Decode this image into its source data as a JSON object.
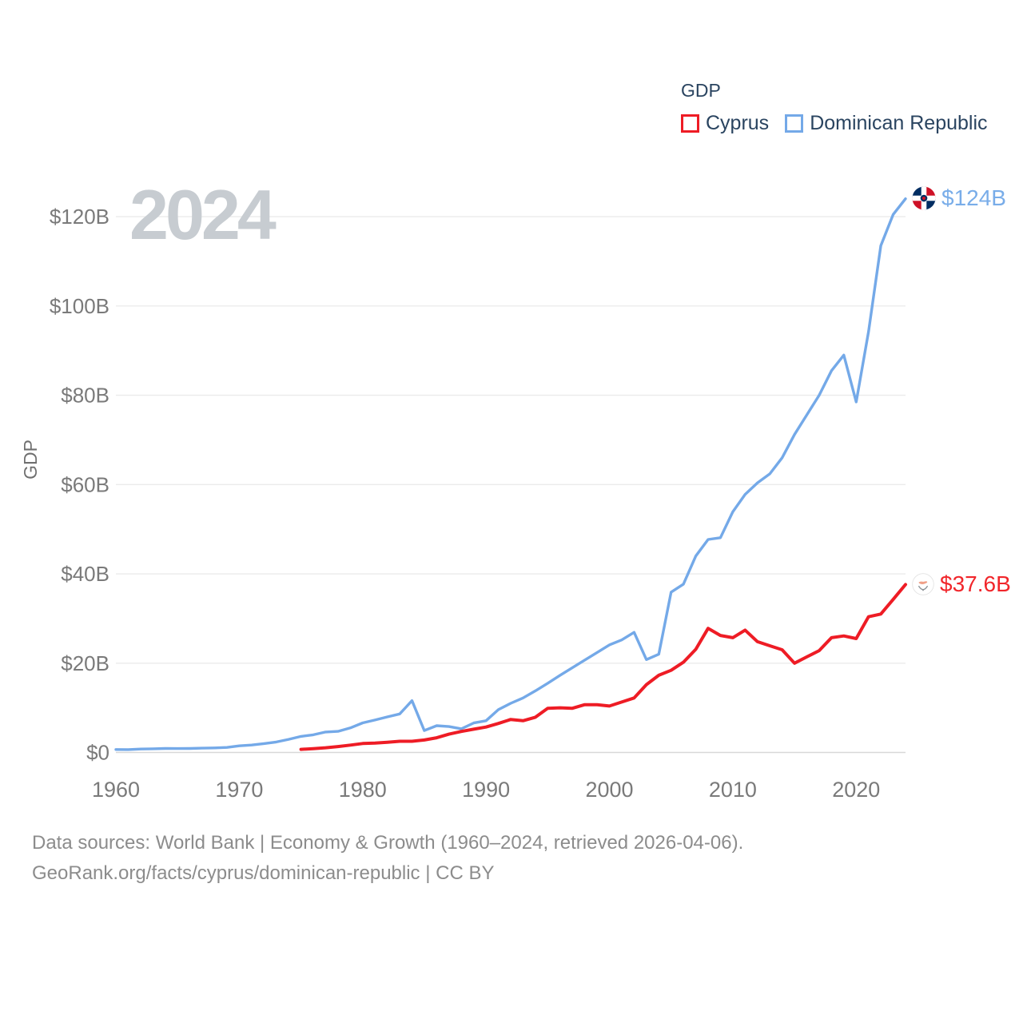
{
  "watermark": "2024",
  "legend": {
    "title": "GDP",
    "items": [
      {
        "id": "cyprus",
        "label": "Cyprus",
        "color": "#ee1c25"
      },
      {
        "id": "dominican-republic",
        "label": "Dominican Republic",
        "color": "#74a9e8"
      }
    ]
  },
  "end_labels": {
    "dominican_republic": "$124B",
    "cyprus": "$37.6B"
  },
  "colors": {
    "cyprus_line": "#ee1c25",
    "dominican_line": "#74a9e8",
    "grid": "#ebebeb",
    "zero_line": "#d8d8d8",
    "tick_text": "#7a7a7a",
    "axis_title": "#6f6f6f"
  },
  "chart_data": {
    "type": "line",
    "title": "GDP",
    "xlabel": "",
    "ylabel": "GDP",
    "x_range": [
      1960,
      2024
    ],
    "ylim": [
      0,
      130
    ],
    "grid": true,
    "legend_position": "top-right",
    "y_ticks": [
      {
        "value": 0,
        "label": "$0"
      },
      {
        "value": 20,
        "label": "$20B"
      },
      {
        "value": 40,
        "label": "$40B"
      },
      {
        "value": 60,
        "label": "$60B"
      },
      {
        "value": 80,
        "label": "$80B"
      },
      {
        "value": 100,
        "label": "$100B"
      },
      {
        "value": 120,
        "label": "$120B"
      }
    ],
    "x_ticks": [
      {
        "value": 1960,
        "label": "1960"
      },
      {
        "value": 1970,
        "label": "1970"
      },
      {
        "value": 1980,
        "label": "1980"
      },
      {
        "value": 1990,
        "label": "1990"
      },
      {
        "value": 2000,
        "label": "2000"
      },
      {
        "value": 2010,
        "label": "2010"
      },
      {
        "value": 2020,
        "label": "2020"
      }
    ],
    "series": [
      {
        "name": "Dominican Republic",
        "color": "#74a9e8",
        "start_year": 1960,
        "end_label": "$124B",
        "values": [
          0.67,
          0.64,
          0.77,
          0.83,
          0.89,
          0.87,
          0.9,
          0.97,
          1.02,
          1.12,
          1.49,
          1.67,
          1.98,
          2.35,
          2.93,
          3.6,
          3.95,
          4.58,
          4.73,
          5.5,
          6.63,
          7.27,
          7.96,
          8.62,
          11.6,
          4.9,
          6.0,
          5.8,
          5.3,
          6.6,
          7.1,
          9.6,
          11.0,
          12.2,
          13.8,
          15.5,
          17.3,
          19.0,
          20.7,
          22.4,
          24.1,
          25.2,
          26.9,
          20.8,
          22.0,
          35.9,
          37.7,
          44.0,
          47.7,
          48.1,
          53.9,
          57.8,
          60.4,
          62.4,
          66.0,
          71.2,
          75.6,
          80.0,
          85.5,
          89.0,
          78.5,
          94.2,
          113.5,
          120.5,
          124.0
        ]
      },
      {
        "name": "Cyprus",
        "color": "#ee1c25",
        "start_year": 1975,
        "end_label": "$37.6B",
        "values": [
          0.69,
          0.86,
          1.06,
          1.32,
          1.65,
          2.0,
          2.1,
          2.3,
          2.5,
          2.5,
          2.8,
          3.3,
          4.1,
          4.7,
          5.2,
          5.7,
          6.5,
          7.4,
          7.1,
          7.9,
          9.9,
          10.0,
          9.9,
          10.7,
          10.7,
          10.4,
          11.3,
          12.2,
          15.2,
          17.3,
          18.4,
          20.2,
          23.1,
          27.8,
          26.2,
          25.7,
          27.4,
          24.8,
          23.9,
          23.0,
          20.0,
          21.4,
          22.8,
          25.7,
          26.1,
          25.5,
          30.4,
          31.0,
          34.3,
          37.6
        ]
      }
    ]
  },
  "footer": {
    "line1": "Data sources: World Bank | Economy & Growth (1960–2024, retrieved 2026-04-06).",
    "line2": "GeoRank.org/facts/cyprus/dominican-republic | CC BY"
  }
}
